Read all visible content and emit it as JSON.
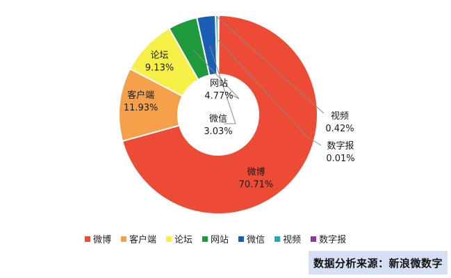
{
  "chart_data": {
    "type": "pie",
    "title": "",
    "categories": [
      "微博",
      "客户端",
      "论坛",
      "网站",
      "微信",
      "视频",
      "数字报"
    ],
    "values": [
      70.71,
      11.93,
      9.13,
      4.77,
      3.03,
      0.42,
      0.01
    ],
    "value_labels": [
      "70.71%",
      "11.93%",
      "9.13%",
      "4.77%",
      "3.03%",
      "0.42%",
      "0.01%"
    ],
    "colors": [
      "#ee4b36",
      "#f5a04a",
      "#f7f047",
      "#1e9a3c",
      "#1a5fb4",
      "#2aa6b8",
      "#8e3a9a"
    ],
    "legend_position": "bottom",
    "donut": true
  },
  "source": {
    "text": "数据分析来源：新浪微数字"
  }
}
